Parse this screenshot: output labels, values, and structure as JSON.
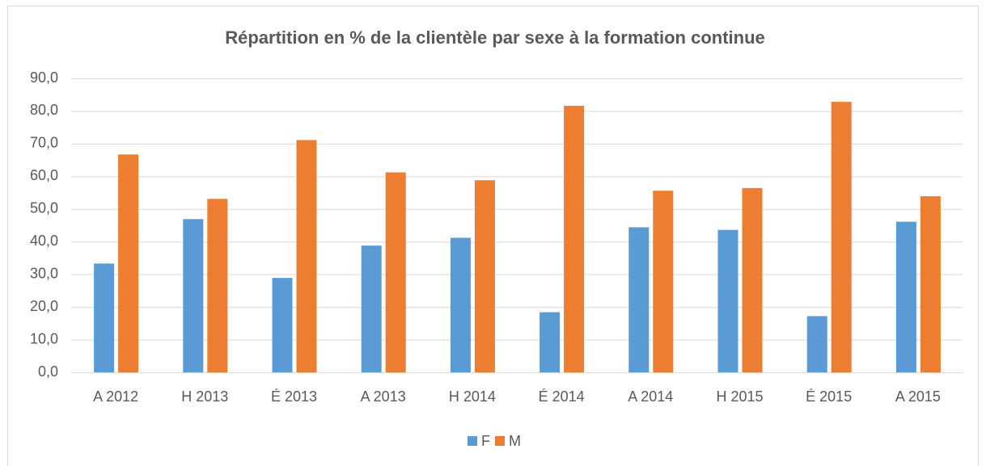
{
  "chart_data": {
    "type": "bar",
    "title": "Répartition en % de la clientèle par sexe à la formation continue",
    "categories": [
      "A 2012",
      "H 2013",
      "É 2013",
      "A 2013",
      "H 2014",
      "É 2014",
      "A 2014",
      "H 2015",
      "É 2015",
      "A 2015"
    ],
    "series": [
      {
        "name": "F",
        "color": "#5b9bd5",
        "values": [
          33.3,
          46.9,
          28.9,
          38.8,
          41.2,
          18.4,
          44.4,
          43.6,
          17.2,
          46.1
        ]
      },
      {
        "name": "M",
        "color": "#ed7d31",
        "values": [
          66.7,
          53.1,
          71.1,
          61.2,
          58.8,
          81.6,
          55.6,
          56.4,
          82.8,
          53.9
        ]
      }
    ],
    "ylim": [
      0,
      90
    ],
    "yticks": [
      {
        "value": 0,
        "label": "0,0"
      },
      {
        "value": 10,
        "label": "10,0"
      },
      {
        "value": 20,
        "label": "20,0"
      },
      {
        "value": 30,
        "label": "30,0"
      },
      {
        "value": 40,
        "label": "40,0"
      },
      {
        "value": 50,
        "label": "50,0"
      },
      {
        "value": 60,
        "label": "60,0"
      },
      {
        "value": 70,
        "label": "70,0"
      },
      {
        "value": 80,
        "label": "80,0"
      },
      {
        "value": 90,
        "label": "90,0"
      }
    ],
    "grid": true,
    "legend": "bottom"
  }
}
